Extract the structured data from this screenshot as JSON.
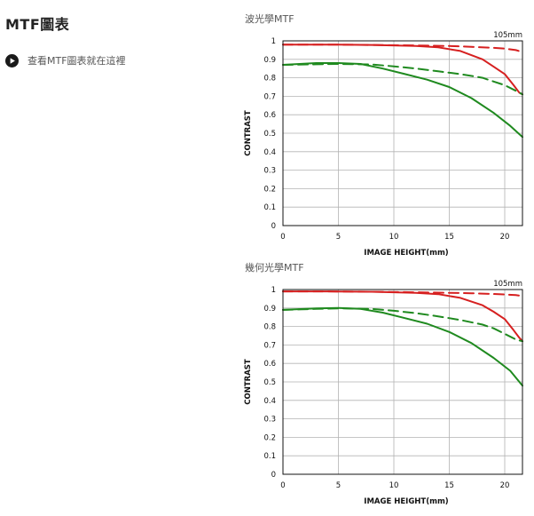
{
  "page": {
    "title": "MTF圖表",
    "link_label": "查看MTF圖表就在這裡",
    "link_icon": "play-circle-icon"
  },
  "colors": {
    "red": "#d62020",
    "green": "#1f8a1f",
    "grid": "#b3b3b3",
    "frame": "#111111"
  },
  "chart_data": [
    {
      "type": "line",
      "title": "波光學MTF",
      "lens_label": "105mm",
      "xlabel": "IMAGE HEIGHT(mm)",
      "ylabel": "CONTRAST",
      "xlim": [
        0,
        21.6
      ],
      "ylim": [
        0,
        1
      ],
      "xticks": [
        "0",
        "5",
        "10",
        "15",
        "20"
      ],
      "yticks": [
        "0",
        "0.1",
        "0.2",
        "0.3",
        "0.4",
        "0.5",
        "0.6",
        "0.7",
        "0.8",
        "0.9",
        "1"
      ],
      "grid": true,
      "series": [
        {
          "color": "red",
          "dash": false,
          "x": [
            0,
            4,
            8,
            12,
            14,
            16,
            18,
            19,
            20,
            20.8,
            21.3,
            21.6
          ],
          "y": [
            0.98,
            0.98,
            0.978,
            0.972,
            0.965,
            0.945,
            0.9,
            0.86,
            0.82,
            0.76,
            0.72,
            0.71
          ]
        },
        {
          "color": "red",
          "dash": true,
          "x": [
            0,
            4,
            8,
            12,
            15,
            17,
            19,
            20,
            21,
            21.6
          ],
          "y": [
            0.98,
            0.98,
            0.978,
            0.975,
            0.972,
            0.968,
            0.962,
            0.958,
            0.95,
            0.94
          ]
        },
        {
          "color": "green",
          "dash": false,
          "x": [
            0,
            3,
            5,
            7,
            9,
            11,
            13,
            15,
            17,
            19,
            20.5,
            21.6
          ],
          "y": [
            0.87,
            0.88,
            0.88,
            0.875,
            0.85,
            0.82,
            0.79,
            0.75,
            0.69,
            0.61,
            0.54,
            0.48
          ]
        },
        {
          "color": "green",
          "dash": true,
          "x": [
            0,
            3,
            5,
            8,
            10,
            12,
            14,
            16,
            18,
            19,
            20,
            21,
            21.6
          ],
          "y": [
            0.87,
            0.873,
            0.875,
            0.872,
            0.862,
            0.85,
            0.835,
            0.82,
            0.8,
            0.78,
            0.76,
            0.73,
            0.71
          ]
        }
      ]
    },
    {
      "type": "line",
      "title": "幾何光學MTF",
      "lens_label": "105mm",
      "xlabel": "IMAGE HEIGHT(mm)",
      "ylabel": "CONTRAST",
      "xlim": [
        0,
        21.6
      ],
      "ylim": [
        0,
        1
      ],
      "xticks": [
        "0",
        "5",
        "10",
        "15",
        "20"
      ],
      "yticks": [
        "0",
        "0.1",
        "0.2",
        "0.3",
        "0.4",
        "0.5",
        "0.6",
        "0.7",
        "0.8",
        "0.9",
        "1"
      ],
      "grid": true,
      "series": [
        {
          "color": "red",
          "dash": false,
          "x": [
            0,
            4,
            8,
            12,
            14,
            16,
            18,
            19,
            20,
            20.8,
            21.3,
            21.6
          ],
          "y": [
            0.99,
            0.99,
            0.988,
            0.982,
            0.975,
            0.955,
            0.915,
            0.88,
            0.84,
            0.78,
            0.74,
            0.72
          ]
        },
        {
          "color": "red",
          "dash": true,
          "x": [
            0,
            4,
            8,
            12,
            15,
            17,
            19,
            20,
            21,
            21.6
          ],
          "y": [
            0.99,
            0.99,
            0.988,
            0.985,
            0.982,
            0.98,
            0.976,
            0.973,
            0.97,
            0.965
          ]
        },
        {
          "color": "green",
          "dash": false,
          "x": [
            0,
            3,
            5,
            7,
            9,
            11,
            13,
            15,
            17,
            19,
            20.5,
            21.6
          ],
          "y": [
            0.89,
            0.898,
            0.9,
            0.895,
            0.875,
            0.845,
            0.815,
            0.77,
            0.71,
            0.63,
            0.56,
            0.48
          ]
        },
        {
          "color": "green",
          "dash": true,
          "x": [
            0,
            3,
            5,
            8,
            10,
            12,
            14,
            16,
            18,
            19,
            20,
            21,
            21.6
          ],
          "y": [
            0.89,
            0.895,
            0.898,
            0.895,
            0.885,
            0.872,
            0.855,
            0.835,
            0.81,
            0.79,
            0.76,
            0.73,
            0.72
          ]
        }
      ]
    }
  ]
}
